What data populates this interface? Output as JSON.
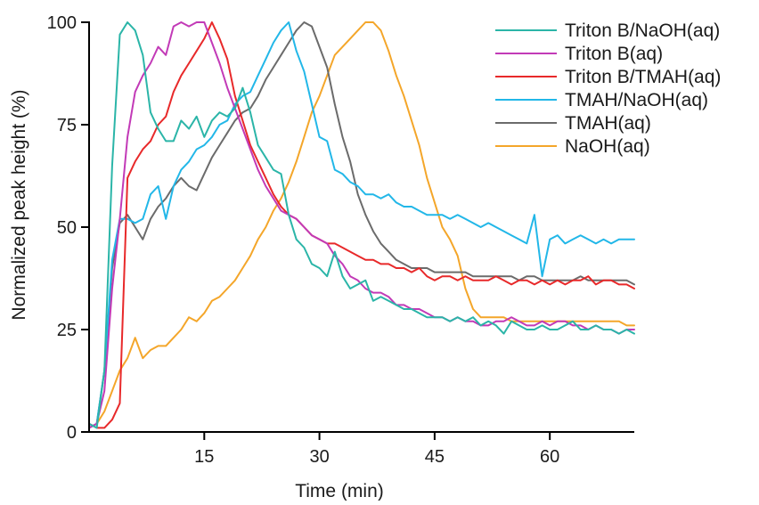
{
  "chart_data": {
    "type": "line",
    "xlabel": "Time (min)",
    "ylabel": "Normalized peak height (%)",
    "xlim": [
      0,
      71
    ],
    "ylim": [
      0,
      100
    ],
    "x_ticks": [
      15,
      30,
      45,
      60
    ],
    "y_ticks": [
      0,
      25,
      50,
      75,
      100
    ],
    "x_tick_labels": [
      "15",
      "30",
      "45",
      "60"
    ],
    "y_tick_labels": [
      "0",
      "25",
      "50",
      "75",
      "100"
    ],
    "legend_position": "top-right",
    "series": [
      {
        "name": "Triton B/NaOH(aq)",
        "color": "#2bb5a8",
        "x": [
          0,
          1,
          2,
          3,
          4,
          5,
          6,
          7,
          8,
          9,
          10,
          11,
          12,
          13,
          14,
          15,
          16,
          17,
          18,
          19,
          20,
          21,
          22,
          23,
          24,
          25,
          26,
          27,
          28,
          29,
          30,
          31,
          32,
          33,
          34,
          35,
          36,
          37,
          38,
          39,
          40,
          41,
          42,
          43,
          44,
          45,
          46,
          47,
          48,
          49,
          50,
          51,
          52,
          53,
          54,
          55,
          56,
          57,
          58,
          59,
          60,
          61,
          62,
          63,
          64,
          65,
          66,
          67,
          68,
          69,
          70,
          71
        ],
        "values": [
          2,
          1,
          15,
          65,
          97,
          100,
          98,
          92,
          78,
          74,
          71,
          71,
          76,
          74,
          77,
          72,
          76,
          78,
          77,
          79,
          84,
          78,
          70,
          67,
          64,
          63,
          53,
          47,
          45,
          41,
          40,
          38,
          44,
          38,
          35,
          36,
          37,
          32,
          33,
          32,
          31,
          30,
          30,
          29,
          28,
          28,
          28,
          27,
          28,
          27,
          28,
          26,
          27,
          26,
          24,
          27,
          26,
          25,
          25,
          26,
          25,
          25,
          26,
          27,
          25,
          25,
          26,
          25,
          25,
          24,
          25,
          24
        ]
      },
      {
        "name": "Triton B(aq)",
        "color": "#c23ab7",
        "x": [
          0,
          1,
          2,
          3,
          4,
          5,
          6,
          7,
          8,
          9,
          10,
          11,
          12,
          13,
          14,
          15,
          16,
          17,
          18,
          19,
          20,
          21,
          22,
          23,
          24,
          25,
          26,
          27,
          28,
          29,
          30,
          31,
          32,
          33,
          34,
          35,
          36,
          37,
          38,
          39,
          40,
          41,
          42,
          43,
          44,
          45,
          46,
          47,
          48,
          49,
          50,
          51,
          52,
          53,
          54,
          55,
          56,
          57,
          58,
          59,
          60,
          61,
          62,
          63,
          64,
          65,
          66,
          67,
          68,
          69,
          70,
          71
        ],
        "values": [
          1,
          2,
          10,
          35,
          52,
          72,
          83,
          87,
          90,
          94,
          92,
          99,
          100,
          99,
          100,
          100,
          95,
          90,
          84,
          79,
          74,
          69,
          64,
          60,
          57,
          54,
          53,
          52,
          50,
          48,
          47,
          46,
          43,
          41,
          38,
          37,
          35,
          34,
          34,
          33,
          31,
          31,
          30,
          30,
          29,
          28,
          28,
          27,
          28,
          27,
          27,
          26,
          26,
          27,
          27,
          28,
          27,
          26,
          26,
          27,
          26,
          27,
          27,
          26,
          26,
          25,
          26,
          25,
          25,
          24,
          25,
          25
        ]
      },
      {
        "name": "Triton B/TMAH(aq)",
        "color": "#e8292a",
        "x": [
          0,
          1,
          2,
          3,
          4,
          5,
          6,
          7,
          8,
          9,
          10,
          11,
          12,
          13,
          14,
          15,
          16,
          17,
          18,
          19,
          20,
          21,
          22,
          23,
          24,
          25,
          26,
          27,
          28,
          29,
          30,
          31,
          32,
          33,
          34,
          35,
          36,
          37,
          38,
          39,
          40,
          41,
          42,
          43,
          44,
          45,
          46,
          47,
          48,
          49,
          50,
          51,
          52,
          53,
          54,
          55,
          56,
          57,
          58,
          59,
          60,
          61,
          62,
          63,
          64,
          65,
          66,
          67,
          68,
          69,
          70,
          71
        ],
        "values": [
          2,
          1,
          1,
          3,
          7,
          62,
          66,
          69,
          71,
          75,
          77,
          83,
          87,
          90,
          93,
          96,
          100,
          96,
          91,
          82,
          76,
          70,
          66,
          62,
          58,
          55,
          53,
          52,
          50,
          48,
          47,
          46,
          46,
          45,
          44,
          43,
          42,
          42,
          41,
          41,
          40,
          40,
          39,
          40,
          38,
          37,
          38,
          38,
          37,
          38,
          37,
          37,
          37,
          38,
          37,
          36,
          37,
          37,
          36,
          37,
          36,
          37,
          36,
          37,
          37,
          38,
          36,
          37,
          37,
          36,
          36,
          35
        ]
      },
      {
        "name": "TMAH/NaOH(aq)",
        "color": "#22b7e8",
        "x": [
          0,
          1,
          2,
          3,
          4,
          5,
          6,
          7,
          8,
          9,
          10,
          11,
          12,
          13,
          14,
          15,
          16,
          17,
          18,
          19,
          20,
          21,
          22,
          23,
          24,
          25,
          26,
          27,
          28,
          29,
          30,
          31,
          32,
          33,
          34,
          35,
          36,
          37,
          38,
          39,
          40,
          41,
          42,
          43,
          44,
          45,
          46,
          47,
          48,
          49,
          50,
          51,
          52,
          53,
          54,
          55,
          56,
          57,
          58,
          59,
          60,
          61,
          62,
          63,
          64,
          65,
          66,
          67,
          68,
          69,
          70,
          71
        ],
        "values": [
          1,
          2,
          15,
          42,
          52,
          52,
          51,
          52,
          58,
          60,
          52,
          60,
          64,
          66,
          69,
          70,
          72,
          75,
          76,
          80,
          82,
          83,
          87,
          91,
          95,
          98,
          100,
          93,
          88,
          80,
          72,
          71,
          64,
          63,
          61,
          60,
          58,
          58,
          57,
          58,
          56,
          55,
          55,
          54,
          53,
          53,
          53,
          52,
          53,
          52,
          51,
          50,
          51,
          50,
          49,
          48,
          47,
          46,
          53,
          38,
          47,
          48,
          46,
          47,
          48,
          47,
          46,
          47,
          46,
          47,
          47,
          47
        ]
      },
      {
        "name": "TMAH(aq)",
        "color": "#6b6b6b",
        "x": [
          0,
          1,
          2,
          3,
          4,
          5,
          6,
          7,
          8,
          9,
          10,
          11,
          12,
          13,
          14,
          15,
          16,
          17,
          18,
          19,
          20,
          21,
          22,
          23,
          24,
          25,
          26,
          27,
          28,
          29,
          30,
          31,
          32,
          33,
          34,
          35,
          36,
          37,
          38,
          39,
          40,
          41,
          42,
          43,
          44,
          45,
          46,
          47,
          48,
          49,
          50,
          51,
          52,
          53,
          54,
          55,
          56,
          57,
          58,
          59,
          60,
          61,
          62,
          63,
          64,
          65,
          66,
          67,
          68,
          69,
          70,
          71
        ],
        "values": [
          1,
          2,
          15,
          40,
          51,
          53,
          50,
          47,
          52,
          55,
          57,
          60,
          62,
          60,
          59,
          63,
          67,
          70,
          73,
          76,
          78,
          79,
          82,
          86,
          89,
          92,
          95,
          98,
          100,
          99,
          94,
          89,
          80,
          72,
          66,
          58,
          53,
          49,
          46,
          44,
          42,
          41,
          40,
          40,
          40,
          39,
          39,
          39,
          39,
          39,
          38,
          38,
          38,
          38,
          38,
          38,
          37,
          38,
          38,
          37,
          37,
          37,
          37,
          37,
          38,
          37,
          37,
          37,
          37,
          37,
          37,
          36
        ]
      },
      {
        "name": "NaOH(aq)",
        "color": "#f4a62a",
        "x": [
          0,
          1,
          2,
          3,
          4,
          5,
          6,
          7,
          8,
          9,
          10,
          11,
          12,
          13,
          14,
          15,
          16,
          17,
          18,
          19,
          20,
          21,
          22,
          23,
          24,
          25,
          26,
          27,
          28,
          29,
          30,
          31,
          32,
          33,
          34,
          35,
          36,
          37,
          38,
          39,
          40,
          41,
          42,
          43,
          44,
          45,
          46,
          47,
          48,
          49,
          50,
          51,
          52,
          53,
          54,
          55,
          56,
          57,
          58,
          59,
          60,
          61,
          62,
          63,
          64,
          65,
          66,
          67,
          68,
          69,
          70,
          71
        ],
        "values": [
          1,
          2,
          5,
          10,
          15,
          18,
          23,
          18,
          20,
          21,
          21,
          23,
          25,
          28,
          27,
          29,
          32,
          33,
          35,
          37,
          40,
          43,
          47,
          50,
          54,
          57,
          61,
          66,
          72,
          78,
          82,
          87,
          92,
          94,
          96,
          98,
          100,
          100,
          98,
          93,
          87,
          82,
          76,
          70,
          62,
          56,
          50,
          47,
          43,
          35,
          30,
          28,
          28,
          28,
          28,
          27,
          27,
          27,
          27,
          27,
          27,
          27,
          27,
          27,
          27,
          27,
          27,
          27,
          27,
          27,
          26,
          26
        ]
      }
    ]
  }
}
